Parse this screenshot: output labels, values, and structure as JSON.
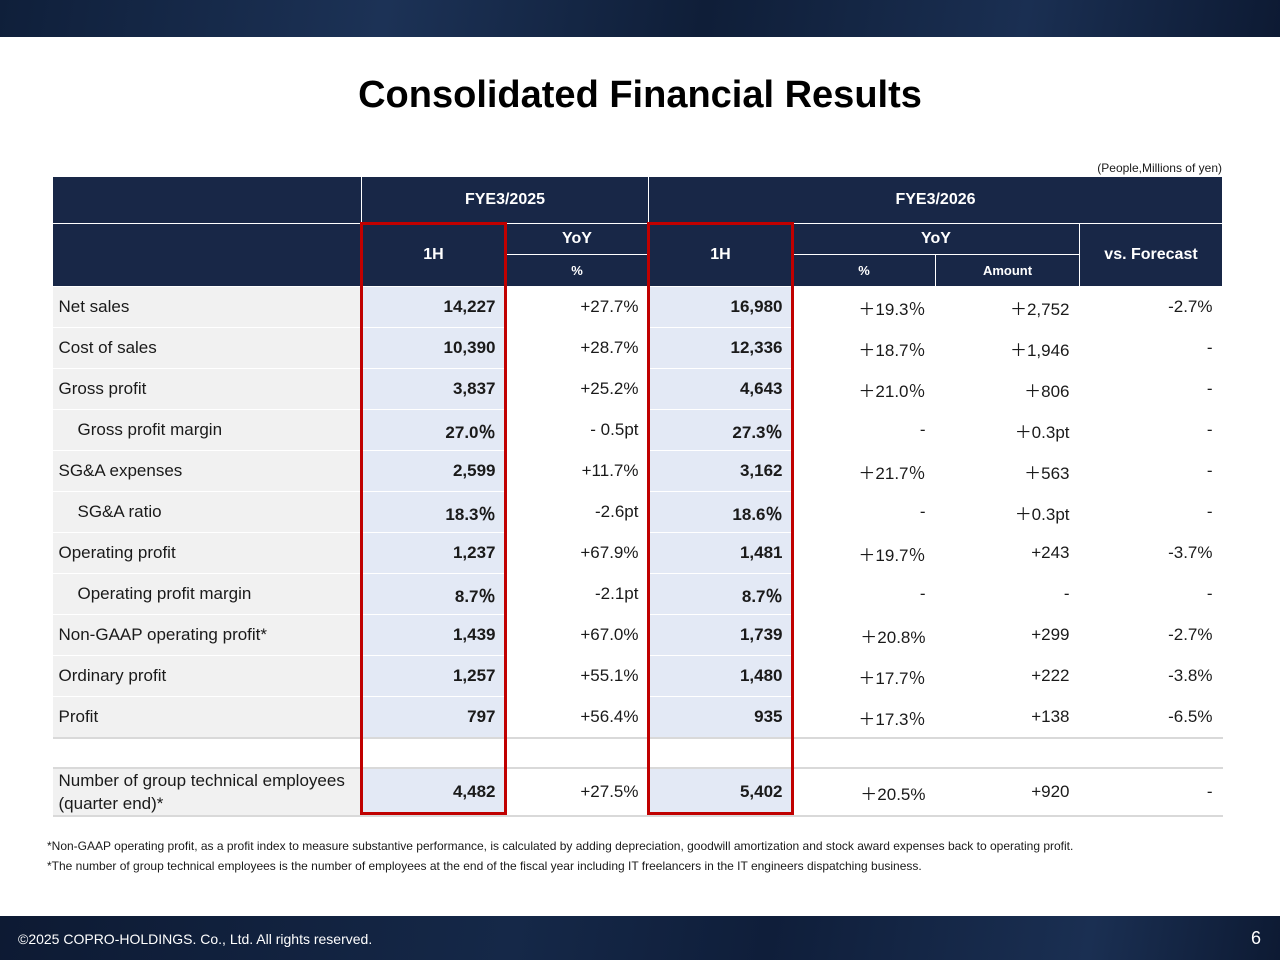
{
  "title": "Consolidated Financial Results",
  "units": "(People,Millions of yen)",
  "header": {
    "fy2025": "FYE3/2025",
    "fy2026": "FYE3/2026",
    "h1": "1H",
    "yoy": "YoY",
    "pct": "%",
    "amount": "Amount",
    "vs_forecast": "vs. Forecast"
  },
  "rows": [
    {
      "label": "Net sales",
      "fy25_1h": "14,227",
      "fy25_yoy": "+27.7%",
      "fy26_1h": "16,980",
      "fy26_yoy_pct": "＋19.3％",
      "fy26_yoy_amt": "＋2,752",
      "vs_forecast": "-2.7%"
    },
    {
      "label": "Cost of sales",
      "fy25_1h": "10,390",
      "fy25_yoy": "+28.7%",
      "fy26_1h": "12,336",
      "fy26_yoy_pct": "＋18.7％",
      "fy26_yoy_amt": "＋1,946",
      "vs_forecast": "-"
    },
    {
      "label": "Gross profit",
      "fy25_1h": "3,837",
      "fy25_yoy": "+25.2%",
      "fy26_1h": "4,643",
      "fy26_yoy_pct": "＋21.0％",
      "fy26_yoy_amt": "＋806",
      "vs_forecast": "-"
    },
    {
      "label": "Gross profit margin",
      "fy25_1h": "27.0％",
      "fy25_yoy": "- 0.5pt",
      "fy26_1h": "27.3％",
      "fy26_yoy_pct": "-",
      "fy26_yoy_amt": "＋0.3pt",
      "vs_forecast": "-"
    },
    {
      "label": "SG&A expenses",
      "fy25_1h": "2,599",
      "fy25_yoy": "+11.7%",
      "fy26_1h": "3,162",
      "fy26_yoy_pct": "＋21.7％",
      "fy26_yoy_amt": "＋563",
      "vs_forecast": "-"
    },
    {
      "label": "SG&A ratio",
      "fy25_1h": "18.3％",
      "fy25_yoy": "-2.6pt",
      "fy26_1h": "18.6％",
      "fy26_yoy_pct": "-",
      "fy26_yoy_amt": "＋0.3pt",
      "vs_forecast": "-"
    },
    {
      "label": "Operating profit",
      "fy25_1h": "1,237",
      "fy25_yoy": "+67.9%",
      "fy26_1h": "1,481",
      "fy26_yoy_pct": "＋19.7％",
      "fy26_yoy_amt": "+243",
      "vs_forecast": "-3.7%"
    },
    {
      "label": "Operating profit margin",
      "fy25_1h": "8.7％",
      "fy25_yoy": "-2.1pt",
      "fy26_1h": "8.7％",
      "fy26_yoy_pct": "-",
      "fy26_yoy_amt": "-",
      "vs_forecast": "-"
    },
    {
      "label": "Non-GAAP operating profit*",
      "fy25_1h": "1,439",
      "fy25_yoy": "+67.0%",
      "fy26_1h": "1,739",
      "fy26_yoy_pct": "＋20.8%",
      "fy26_yoy_amt": "+299",
      "vs_forecast": "-2.7%"
    },
    {
      "label": "Ordinary profit",
      "fy25_1h": "1,257",
      "fy25_yoy": "+55.1%",
      "fy26_1h": "1,480",
      "fy26_yoy_pct": "＋17.7％",
      "fy26_yoy_amt": "+222",
      "vs_forecast": "-3.8%"
    },
    {
      "label": "Profit",
      "fy25_1h": "797",
      "fy25_yoy": "+56.4%",
      "fy26_1h": "935",
      "fy26_yoy_pct": "＋17.3％",
      "fy26_yoy_amt": "+138",
      "vs_forecast": "-6.5%"
    }
  ],
  "employees": {
    "label": "Number of group technical employees (quarter end)*",
    "fy25_1h": "4,482",
    "fy25_yoy": "+27.5%",
    "fy26_1h": "5,402",
    "fy26_yoy_pct": "＋20.5%",
    "fy26_yoy_amt": "+920",
    "vs_forecast": "-"
  },
  "notes": [
    "*Non-GAAP operating profit, as a profit index to measure substantive performance, is calculated by adding depreciation, goodwill amortization and stock award expenses back to operating profit.",
    "*The number of group technical employees is the number of employees at the end of the fiscal year including IT freelancers in the IT engineers dispatching business."
  ],
  "footer": {
    "copyright": "©2025 COPRO-HOLDINGS. Co., Ltd. All rights reserved.",
    "page": "6"
  },
  "colors": {
    "header_bg": "#182747",
    "highlight_bg": "#e3e9f5",
    "box_border": "#c00000",
    "label_bg": "#f1f1f1"
  }
}
